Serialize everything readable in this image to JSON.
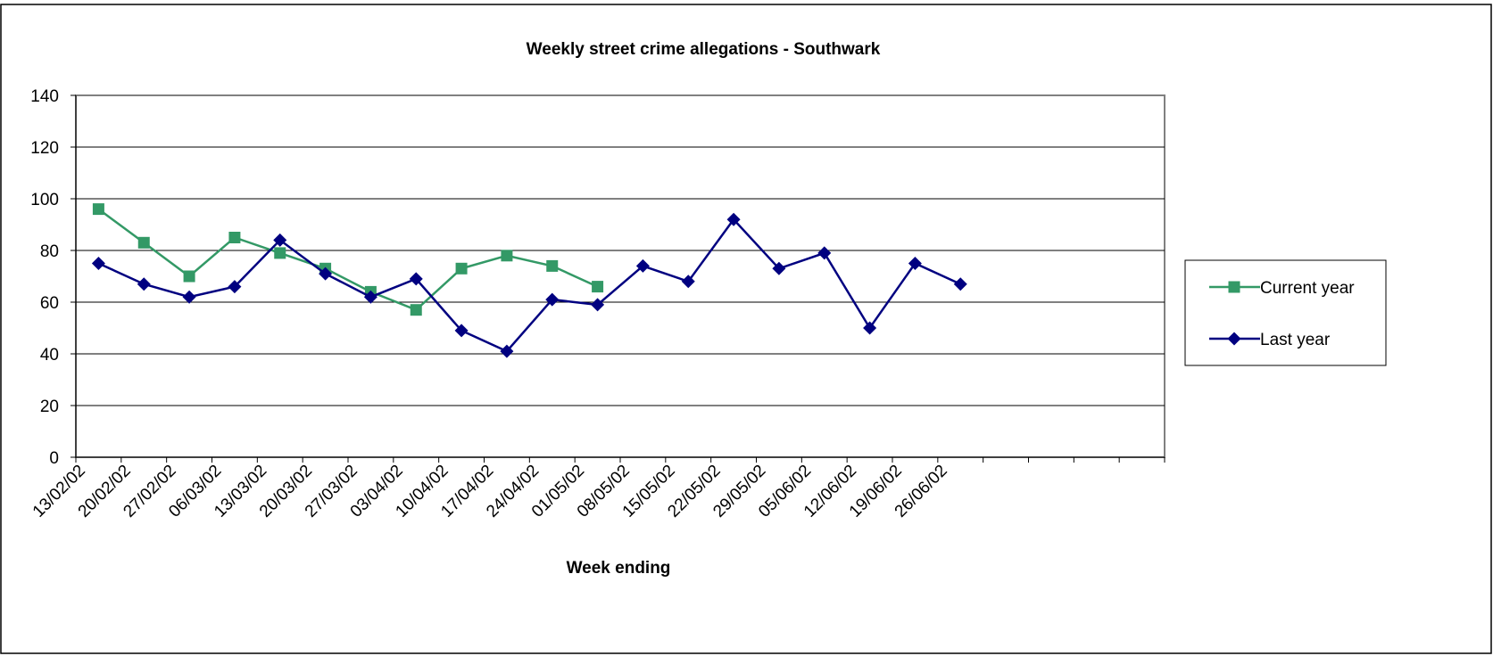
{
  "chart_data": {
    "type": "line",
    "title": "Weekly street crime allegations - Southwark",
    "x_label": "Week ending",
    "categories": [
      "13/02/02",
      "20/02/02",
      "27/02/02",
      "06/03/02",
      "13/03/02",
      "20/03/02",
      "27/03/02",
      "03/04/02",
      "10/04/02",
      "17/04/02",
      "24/04/02",
      "01/05/02",
      "08/05/02",
      "15/05/02",
      "22/05/02",
      "29/05/02",
      "05/06/02",
      "12/06/02",
      "19/06/02",
      "26/06/02",
      null,
      null,
      null,
      null
    ],
    "series": [
      {
        "name": "Current year",
        "color": "#339966",
        "marker": "square",
        "values": [
          96,
          83,
          70,
          85,
          79,
          73,
          64,
          57,
          73,
          78,
          74,
          66,
          null,
          null,
          null,
          null,
          null,
          null,
          null,
          null,
          null,
          null,
          null,
          null
        ]
      },
      {
        "name": "Last year",
        "color": "#000080",
        "marker": "diamond",
        "values": [
          75,
          67,
          62,
          66,
          84,
          71,
          62,
          69,
          49,
          41,
          61,
          59,
          74,
          68,
          92,
          73,
          79,
          50,
          75,
          67,
          null,
          null,
          null,
          null
        ]
      }
    ],
    "ylim": [
      0,
      140
    ],
    "yticks": [
      0,
      20,
      40,
      60,
      80,
      100,
      120,
      140
    ],
    "grid": true,
    "legend": "right"
  }
}
